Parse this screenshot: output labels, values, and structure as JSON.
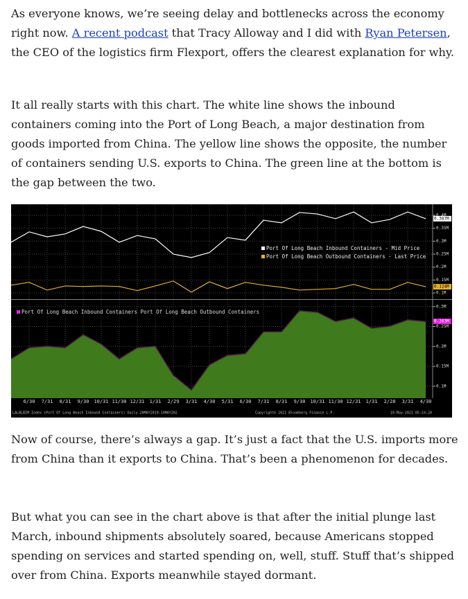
{
  "paragraphs": [
    [
      {
        "text": "As everyone knows, we’re seeing delay and bottlenecks across the economy right now. "
      },
      {
        "text": "A recent podcast",
        "link": true
      },
      {
        "text": " that Tracy Alloway and I did with "
      },
      {
        "text": "Ryan Petersen",
        "link": true
      },
      {
        "text": ", the CEO of the logistics firm Flexport, offers the clearest explanation for why."
      }
    ],
    [
      {
        "text": "It all really starts with this chart. The white line shows the inbound containers coming into the Port of Long Beach, a major destination from goods imported from China. The yellow line shows the opposite, the number of containers sending U.S. exports to China. The green line at the bottom is the gap between the two."
      }
    ],
    [
      {
        "text": "Now of course, there’s always a gap. It’s just a fact that the U.S. imports more from China than it exports to China. That’s been a phenomenon for decades."
      }
    ],
    [
      {
        "text": "But what you can see in the chart above is that after the initial plunge last March, inbound shipments absolutely soared, because Americans stopped spending on services and started spending on, well, stuff. Stuff that’s shipped over from China. Exports meanwhile stayed dormant."
      }
    ]
  ],
  "chart": {
    "categories": [
      null,
      "6/30",
      "7/31",
      "8/31",
      "9/30",
      "10/31",
      "11/30",
      "12/31",
      "1/31",
      "2/29",
      "3/31",
      "4/30",
      "5/31",
      "6/30",
      "7/31",
      "8/31",
      "9/30",
      "10/31",
      "11/30",
      "12/31",
      "1/31",
      "2/28",
      "3/31",
      "4/30"
    ],
    "panels": [
      {
        "type": "line",
        "ylim": [
          0.076,
          0.44
        ],
        "yticks": [
          {
            "value": 0.4,
            "label": "0.4M"
          },
          {
            "value": 0.35,
            "label": "0.35M"
          },
          {
            "value": 0.3,
            "label": "0.3M"
          },
          {
            "value": 0.25,
            "label": "0.25M"
          },
          {
            "value": 0.2,
            "label": "0.2M"
          },
          {
            "value": 0.15,
            "label": "0.15M"
          },
          {
            "value": 0.1,
            "label": "0.1M"
          }
        ],
        "series": [
          {
            "name": "Port Of Long Beach Inbound Containers - Mid Price",
            "color": "#ffffff",
            "values": [
              0.296,
              0.336,
              0.317,
              0.328,
              0.357,
              0.338,
              0.296,
              0.322,
              0.309,
              0.25,
              0.237,
              0.256,
              0.314,
              0.304,
              0.381,
              0.371,
              0.411,
              0.405,
              0.387,
              0.413,
              0.371,
              0.384,
              0.413,
              0.387
            ],
            "value_labels": [
              null,
              null,
              null,
              null,
              null,
              null,
              null,
              null,
              null,
              null,
              null,
              null,
              null,
              null,
              null,
              null,
              null,
              null,
              null,
              null,
              null,
              null,
              null,
              "0.387M"
            ]
          },
          {
            "name": "Port Of Long Beach Outbound Containers - Last Price",
            "color": "#e8b422",
            "values": [
              0.13,
              0.141,
              0.111,
              0.127,
              0.125,
              0.127,
              0.125,
              0.109,
              0.127,
              0.146,
              0.103,
              0.143,
              0.117,
              0.141,
              0.13,
              0.122,
              0.111,
              0.114,
              0.117,
              0.133,
              0.114,
              0.114,
              0.141,
              0.124
            ],
            "value_labels": [
              null,
              null,
              null,
              null,
              null,
              null,
              null,
              null,
              null,
              null,
              null,
              null,
              null,
              null,
              null,
              null,
              null,
              null,
              null,
              null,
              null,
              null,
              null,
              "0.124M"
            ]
          }
        ]
      },
      {
        "type": "area",
        "ylim": [
          0.07,
          0.317
        ],
        "legend": "Port Of Long Beach Inbound Containers   Port Of Long Beach Outbound Containers",
        "legend_color": "#e020e0",
        "yticks": [
          {
            "value": 0.3,
            "label": "0.3M"
          },
          {
            "value": 0.25,
            "label": "0.25M"
          },
          {
            "value": 0.2,
            "label": "0.2M"
          },
          {
            "value": 0.15,
            "label": "0.15M"
          },
          {
            "value": 0.1,
            "label": "0.1M"
          }
        ],
        "series": [
          {
            "color": "#3f7a1c",
            "values": [
              0.169,
              0.197,
              0.201,
              0.197,
              0.23,
              0.206,
              0.169,
              0.197,
              0.201,
              0.128,
              0.091,
              0.154,
              0.178,
              0.182,
              0.237,
              0.237,
              0.29,
              0.286,
              0.263,
              0.272,
              0.246,
              0.251,
              0.267,
              0.263
            ],
            "value_labels": [
              null,
              null,
              null,
              null,
              null,
              null,
              null,
              null,
              null,
              null,
              null,
              null,
              null,
              null,
              null,
              null,
              null,
              null,
              null,
              null,
              null,
              null,
              null,
              "0.263M"
            ]
          }
        ]
      }
    ],
    "footer_left": "LALBLBIM Index (Port Of Long Beach Inbound Containers) Daily 20MAY2019-19MAY202",
    "footer_center": "Copyright© 2021 Bloomberg Finance L.P.",
    "footer_right": "19-May-2021 05:24:20"
  }
}
